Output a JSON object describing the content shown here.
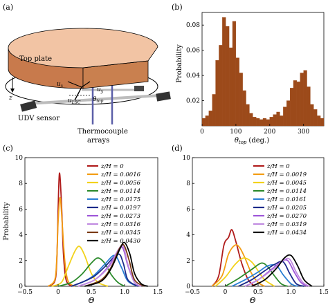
{
  "panels": {
    "a": {
      "label": "(a)",
      "top_plate": "Top plate",
      "udv_sensor": "UDV sensor",
      "thermocouple": [
        "Thermocouple",
        "arrays"
      ],
      "z": "z",
      "u_x": "u",
      "u_x_sub": "x",
      "u_y": "u",
      "u_y_sub": "y",
      "u_lsc": "u",
      "u_lsc_sub": "LSC",
      "theta": "θ",
      "theta_sub": "top",
      "colors": {
        "plate_top": "#f2c4a4",
        "plate_side": "#c87a4c",
        "pipe": "#bcbcbc",
        "sensor": "#333333",
        "probe": "#5b5fa8"
      }
    },
    "b": {
      "label": "(b)",
      "chart_data": {
        "type": "bar",
        "bin_edges_start": 0,
        "bin_width": 10,
        "values": [
          0.006,
          0.008,
          0.012,
          0.025,
          0.052,
          0.064,
          0.086,
          0.079,
          0.062,
          0.083,
          0.054,
          0.042,
          0.028,
          0.017,
          0.01,
          0.007,
          0.006,
          0.005,
          0.006,
          0.005,
          0.007,
          0.009,
          0.011,
          0.008,
          0.015,
          0.02,
          0.03,
          0.036,
          0.035,
          0.042,
          0.044,
          0.031,
          0.017,
          0.013,
          0.008,
          0.006
        ],
        "xlim": [
          0,
          360
        ],
        "ylim": [
          0,
          0.09
        ],
        "xticks": [
          "0",
          "100",
          "200",
          "300"
        ],
        "yticks": [
          "0.02",
          "0.04",
          "0.06",
          "0.08"
        ],
        "xlabel_main": "θ",
        "xlabel_sub": "top",
        "xlabel_unit": "(deg.)",
        "ylabel": "Probability",
        "color": "#9c4a1a"
      }
    },
    "c": {
      "label": "(c)",
      "chart_data": {
        "type": "line",
        "xlim": [
          -0.5,
          1.5
        ],
        "ylim": [
          0,
          10
        ],
        "xticks": [
          "−0.5",
          "0",
          "0.5",
          "1.0",
          "1.5"
        ],
        "yticks": [
          "0",
          "2",
          "4",
          "6",
          "8",
          "10"
        ],
        "xlabel": "Θ",
        "ylabel": "Probability",
        "legend_position": "top-right",
        "series": [
          {
            "name": "z/H = 0",
            "color": "#b01c1c",
            "points": [
              [
                -0.15,
                0
              ],
              [
                -0.05,
                0.4
              ],
              [
                -0.02,
                2.0
              ],
              [
                0.0,
                6.0
              ],
              [
                0.02,
                8.8
              ],
              [
                0.05,
                6.5
              ],
              [
                0.08,
                2.5
              ],
              [
                0.12,
                0.5
              ],
              [
                0.2,
                0
              ]
            ]
          },
          {
            "name": "z/H = 0.0016",
            "color": "#f39c12",
            "points": [
              [
                -0.15,
                0
              ],
              [
                -0.05,
                0.5
              ],
              [
                -0.02,
                2.2
              ],
              [
                0.0,
                5.0
              ],
              [
                0.03,
                6.9
              ],
              [
                0.06,
                5.0
              ],
              [
                0.1,
                2.0
              ],
              [
                0.15,
                0.4
              ],
              [
                0.25,
                0
              ]
            ]
          },
          {
            "name": "z/H = 0.0056",
            "color": "#f2d21b",
            "points": [
              [
                -0.1,
                0
              ],
              [
                0.05,
                0.3
              ],
              [
                0.15,
                1.5
              ],
              [
                0.25,
                2.7
              ],
              [
                0.32,
                3.1
              ],
              [
                0.4,
                2.4
              ],
              [
                0.5,
                1.0
              ],
              [
                0.6,
                0.3
              ],
              [
                0.75,
                0
              ]
            ]
          },
          {
            "name": "z/H = 0.0114",
            "color": "#2b8a2b",
            "points": [
              [
                0.0,
                0
              ],
              [
                0.2,
                0.3
              ],
              [
                0.35,
                0.9
              ],
              [
                0.5,
                1.8
              ],
              [
                0.6,
                2.2
              ],
              [
                0.7,
                1.8
              ],
              [
                0.8,
                0.9
              ],
              [
                0.9,
                0.3
              ],
              [
                1.0,
                0
              ]
            ]
          },
          {
            "name": "z/H = 0.0175",
            "color": "#2a7fd4",
            "points": [
              [
                0.2,
                0
              ],
              [
                0.4,
                0.4
              ],
              [
                0.55,
                0.9
              ],
              [
                0.7,
                1.7
              ],
              [
                0.85,
                2.4
              ],
              [
                0.95,
                1.5
              ],
              [
                1.05,
                0.4
              ],
              [
                1.2,
                0
              ]
            ]
          },
          {
            "name": "z/H = 0.0197",
            "color": "#1b2a8a",
            "points": [
              [
                0.2,
                0
              ],
              [
                0.4,
                0.4
              ],
              [
                0.55,
                0.8
              ],
              [
                0.7,
                1.5
              ],
              [
                0.9,
                2.5
              ],
              [
                0.98,
                1.8
              ],
              [
                1.05,
                0.5
              ],
              [
                1.2,
                0
              ]
            ]
          },
          {
            "name": "z/H = 0.0273",
            "color": "#9d55d8",
            "points": [
              [
                0.3,
                0
              ],
              [
                0.55,
                0.5
              ],
              [
                0.75,
                1.5
              ],
              [
                0.88,
                2.6
              ],
              [
                0.97,
                3.0
              ],
              [
                1.05,
                1.6
              ],
              [
                1.15,
                0.3
              ],
              [
                1.25,
                0
              ]
            ]
          },
          {
            "name": "z/H = 0.0316",
            "color": "#c08ae0",
            "points": [
              [
                0.3,
                0
              ],
              [
                0.55,
                0.5
              ],
              [
                0.78,
                1.6
              ],
              [
                0.9,
                2.8
              ],
              [
                0.98,
                3.1
              ],
              [
                1.05,
                1.7
              ],
              [
                1.15,
                0.3
              ],
              [
                1.25,
                0
              ]
            ]
          },
          {
            "name": "z/H = 0.0345",
            "color": "#7a3a14",
            "points": [
              [
                0.4,
                0
              ],
              [
                0.65,
                0.5
              ],
              [
                0.8,
                1.5
              ],
              [
                0.92,
                2.9
              ],
              [
                0.99,
                3.2
              ],
              [
                1.07,
                2.0
              ],
              [
                1.15,
                0.5
              ],
              [
                1.3,
                0
              ]
            ]
          },
          {
            "name": "z/H = 0.0430",
            "color": "#000000",
            "points": [
              [
                0.4,
                0
              ],
              [
                0.65,
                0.4
              ],
              [
                0.8,
                1.4
              ],
              [
                0.93,
                2.9
              ],
              [
                1.0,
                3.4
              ],
              [
                1.08,
                2.5
              ],
              [
                1.15,
                1.0
              ],
              [
                1.25,
                0.2
              ],
              [
                1.35,
                0
              ]
            ]
          }
        ]
      }
    },
    "d": {
      "label": "(d)",
      "chart_data": {
        "type": "line",
        "xlim": [
          -0.5,
          1.5
        ],
        "ylim": [
          0,
          10
        ],
        "xticks": [
          "−0.5",
          "0",
          "0.5",
          "1.0",
          "1.5"
        ],
        "yticks": [
          "0",
          "2",
          "4",
          "6",
          "8",
          "10"
        ],
        "xlabel": "Θ",
        "ylabel": "",
        "legend_position": "top-right",
        "series": [
          {
            "name": "z/H = 0",
            "color": "#b01c1c",
            "points": [
              [
                -0.2,
                0
              ],
              [
                -0.1,
                0.8
              ],
              [
                -0.02,
                3.2
              ],
              [
                0.05,
                3.8
              ],
              [
                0.1,
                4.4
              ],
              [
                0.16,
                3.5
              ],
              [
                0.25,
                1.8
              ],
              [
                0.35,
                0.5
              ],
              [
                0.45,
                0
              ]
            ]
          },
          {
            "name": "z/H = 0.0019",
            "color": "#f39c12",
            "points": [
              [
                -0.2,
                0
              ],
              [
                -0.05,
                0.8
              ],
              [
                0.05,
                2.5
              ],
              [
                0.15,
                3.2
              ],
              [
                0.22,
                3.0
              ],
              [
                0.3,
                2.2
              ],
              [
                0.4,
                1.0
              ],
              [
                0.5,
                0.3
              ],
              [
                0.6,
                0
              ]
            ]
          },
          {
            "name": "z/H = 0.0045",
            "color": "#f2d21b",
            "points": [
              [
                -0.15,
                0
              ],
              [
                0.0,
                0.7
              ],
              [
                0.15,
                1.7
              ],
              [
                0.28,
                2.2
              ],
              [
                0.4,
                1.9
              ],
              [
                0.5,
                1.2
              ],
              [
                0.6,
                0.5
              ],
              [
                0.75,
                0
              ]
            ]
          },
          {
            "name": "z/H = 0.0114",
            "color": "#2b8a2b",
            "points": [
              [
                0.0,
                0
              ],
              [
                0.2,
                0.6
              ],
              [
                0.4,
                1.3
              ],
              [
                0.55,
                1.8
              ],
              [
                0.65,
                1.5
              ],
              [
                0.75,
                0.8
              ],
              [
                0.85,
                0.2
              ],
              [
                0.95,
                0
              ]
            ]
          },
          {
            "name": "z/H = 0.0161",
            "color": "#2a7fd4",
            "points": [
              [
                0.1,
                0
              ],
              [
                0.3,
                0.5
              ],
              [
                0.5,
                1.1
              ],
              [
                0.65,
                1.6
              ],
              [
                0.78,
                1.6
              ],
              [
                0.88,
                0.9
              ],
              [
                1.0,
                0.2
              ],
              [
                1.1,
                0
              ]
            ]
          },
          {
            "name": "z/H = 0.0205",
            "color": "#1b2a8a",
            "points": [
              [
                0.2,
                0
              ],
              [
                0.4,
                0.5
              ],
              [
                0.6,
                1.2
              ],
              [
                0.75,
                1.7
              ],
              [
                0.88,
                1.9
              ],
              [
                0.98,
                1.0
              ],
              [
                1.08,
                0.2
              ],
              [
                1.2,
                0
              ]
            ]
          },
          {
            "name": "z/H = 0.0270",
            "color": "#9d55d8",
            "points": [
              [
                0.3,
                0
              ],
              [
                0.5,
                0.5
              ],
              [
                0.7,
                1.3
              ],
              [
                0.85,
                1.9
              ],
              [
                0.95,
                2.0
              ],
              [
                1.05,
                1.1
              ],
              [
                1.15,
                0.3
              ],
              [
                1.25,
                0
              ]
            ]
          },
          {
            "name": "z/H = 0.0319",
            "color": "#c08ae0",
            "points": [
              [
                0.3,
                0
              ],
              [
                0.5,
                0.5
              ],
              [
                0.72,
                1.3
              ],
              [
                0.88,
                2.0
              ],
              [
                0.98,
                2.1
              ],
              [
                1.08,
                1.1
              ],
              [
                1.18,
                0.3
              ],
              [
                1.28,
                0
              ]
            ]
          },
          {
            "name": "z/H = 0.0434",
            "color": "#000000",
            "points": [
              [
                0.4,
                0
              ],
              [
                0.6,
                0.5
              ],
              [
                0.78,
                1.4
              ],
              [
                0.9,
                2.2
              ],
              [
                1.0,
                2.4
              ],
              [
                1.1,
                1.6
              ],
              [
                1.2,
                0.5
              ],
              [
                1.32,
                0
              ]
            ]
          }
        ]
      }
    }
  }
}
